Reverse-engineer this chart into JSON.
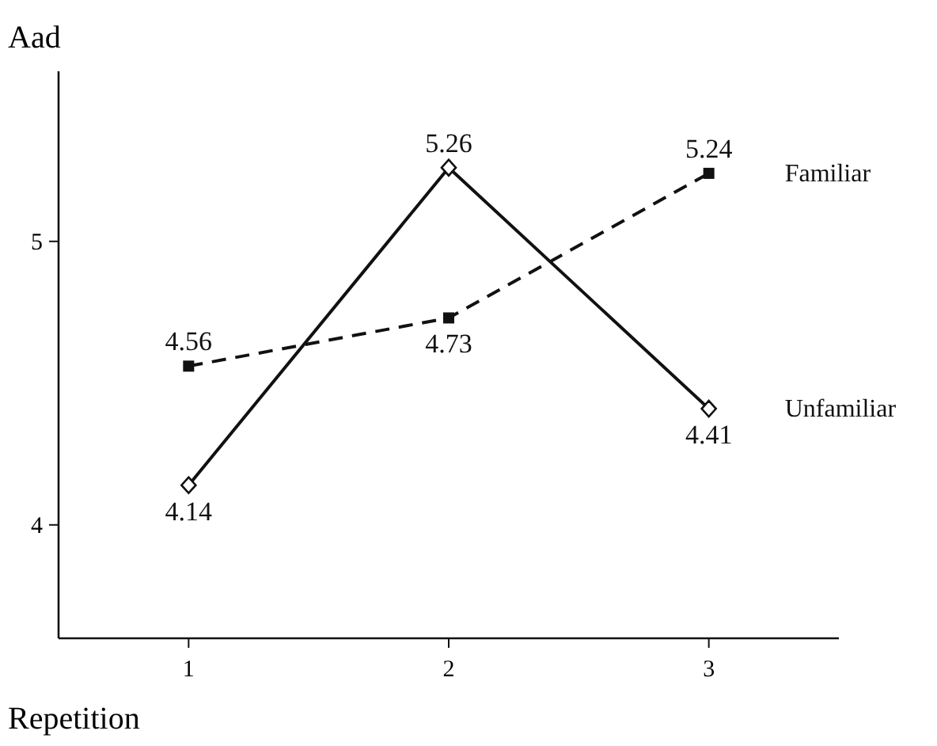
{
  "chart_data": {
    "type": "line",
    "xlabel": "Repetition",
    "ylabel": "Aad",
    "x": [
      1,
      2,
      3
    ],
    "xlim": [
      0.5,
      3.5
    ],
    "xticks": [
      1,
      2,
      3
    ],
    "ylim": [
      3.6,
      5.6
    ],
    "yticks": [
      4,
      5
    ],
    "data_labels": true,
    "series": [
      {
        "name": "Familiar",
        "color": "#111111",
        "values": [
          4.56,
          4.73,
          5.24
        ],
        "marker": "square",
        "line_style": "dashed"
      },
      {
        "name": "Unfamiliar",
        "color": "#111111",
        "values": [
          4.14,
          5.26,
          4.41
        ],
        "marker": "diamond",
        "line_style": "solid"
      }
    ]
  }
}
